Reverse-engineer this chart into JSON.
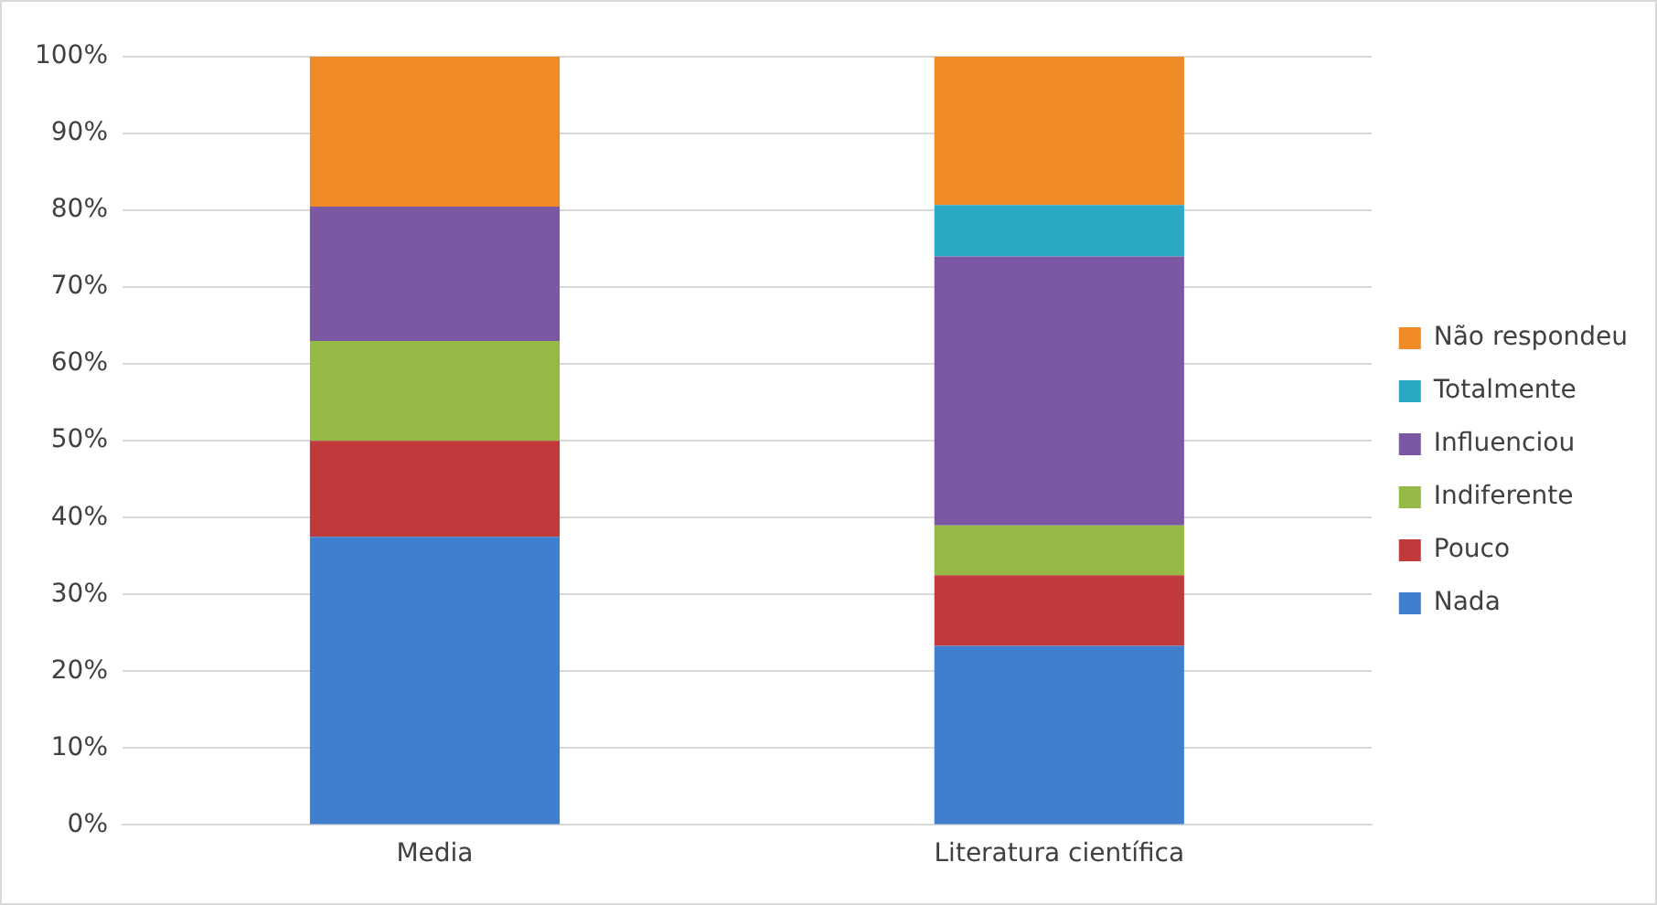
{
  "chart_data": {
    "type": "bar",
    "stacked": true,
    "categories": [
      "Media",
      "Literatura científica"
    ],
    "series": [
      {
        "name": "Nada",
        "color": "#3f7fce",
        "values": [
          37.5,
          23.3
        ]
      },
      {
        "name": "Pouco",
        "color": "#c0393b",
        "values": [
          12.5,
          9.2
        ]
      },
      {
        "name": "Indiferente",
        "color": "#94b944",
        "values": [
          13,
          6.5
        ]
      },
      {
        "name": "Influenciou",
        "color": "#7a58a3",
        "values": [
          17.5,
          35
        ]
      },
      {
        "name": "Totalmente",
        "color": "#2ba8c4",
        "values": [
          0,
          6.7
        ]
      },
      {
        "name": "Não respondeu",
        "color": "#ef8a27",
        "values": [
          19.5,
          19.3
        ]
      }
    ],
    "ylim": [
      0,
      100
    ],
    "yticks": [
      {
        "value": 0,
        "label": "0%"
      },
      {
        "value": 10,
        "label": "10%"
      },
      {
        "value": 20,
        "label": "20%"
      },
      {
        "value": 30,
        "label": "30%"
      },
      {
        "value": 40,
        "label": "40%"
      },
      {
        "value": 50,
        "label": "50%"
      },
      {
        "value": 60,
        "label": "60%"
      },
      {
        "value": 70,
        "label": "70%"
      },
      {
        "value": 80,
        "label": "80%"
      },
      {
        "value": 90,
        "label": "90%"
      },
      {
        "value": 100,
        "label": "100%"
      }
    ],
    "grid": "y",
    "legend": "right"
  }
}
